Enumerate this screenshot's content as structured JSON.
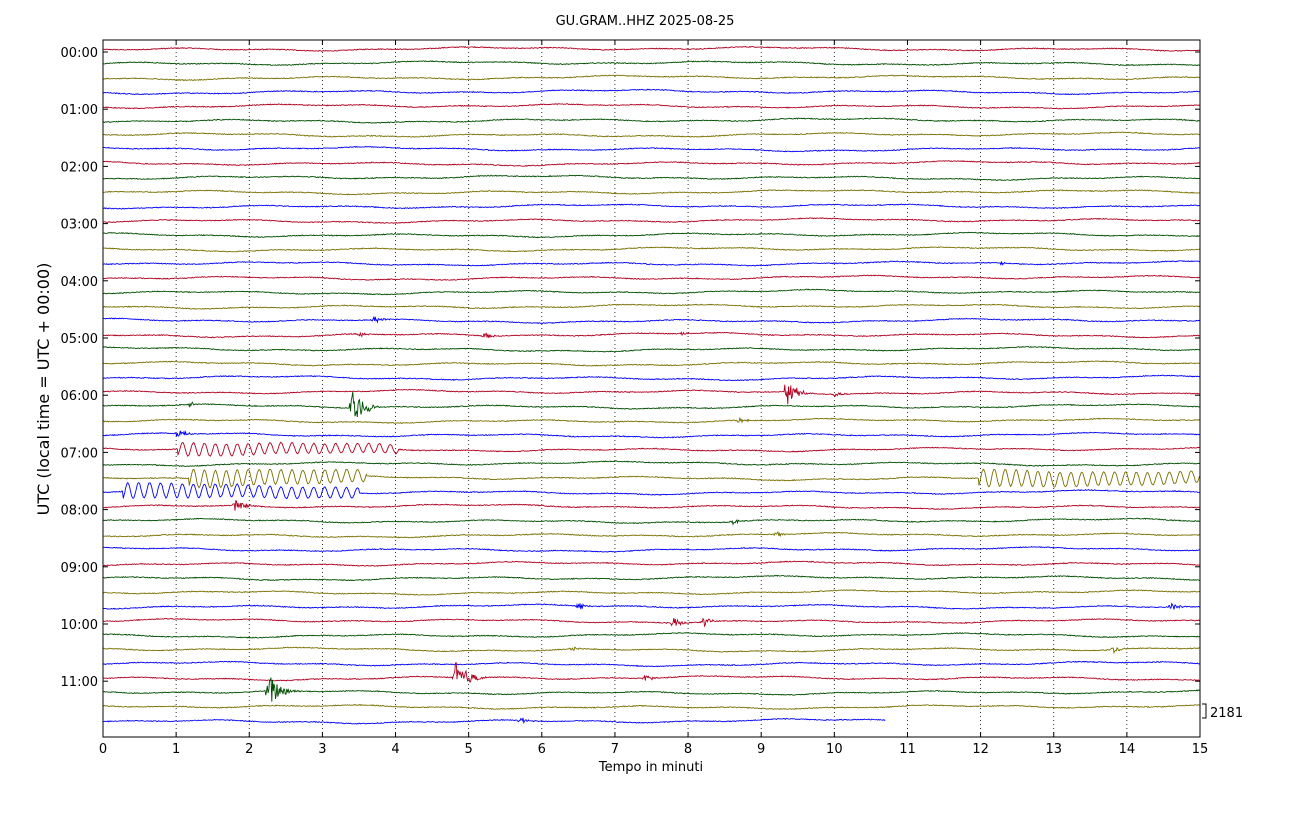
{
  "chart_data": {
    "type": "line",
    "title": "GU.GRAM..HHZ 2025-08-25",
    "xlabel": "Tempo in minuti",
    "ylabel": "UTC (local time = UTC + 00:00)",
    "xlim": [
      0,
      15
    ],
    "x_ticks": [
      "0",
      "1",
      "2",
      "3",
      "4",
      "5",
      "6",
      "7",
      "8",
      "9",
      "10",
      "11",
      "12",
      "13",
      "14",
      "15"
    ],
    "y_tick_labels": [
      "00:00",
      "01:00",
      "02:00",
      "03:00",
      "04:00",
      "05:00",
      "06:00",
      "07:00",
      "08:00",
      "09:00",
      "10:00",
      "11:00"
    ],
    "trace_interval_minutes": 15,
    "trace_count": 48,
    "last_trace_end_minute": 10.7,
    "grid": "vertical dotted",
    "scale_value": "2181",
    "colors": [
      "#b00020",
      "#004d00",
      "#7a7000",
      "#0000ff"
    ],
    "events": [
      {
        "trace": 15,
        "minute": 12.3,
        "amp": 0.5,
        "dur": 0.05
      },
      {
        "trace": 17,
        "minute": 4.3,
        "amp": 0.3,
        "dur": 0.1
      },
      {
        "trace": 19,
        "minute": 3.7,
        "amp": 0.5,
        "dur": 0.25
      },
      {
        "trace": 20,
        "minute": 3.5,
        "amp": 0.4,
        "dur": 0.2
      },
      {
        "trace": 20,
        "minute": 5.2,
        "amp": 0.4,
        "dur": 0.3
      },
      {
        "trace": 20,
        "minute": 7.9,
        "amp": 0.3,
        "dur": 0.2
      },
      {
        "trace": 24,
        "minute": 9.35,
        "amp": 2.2,
        "dur": 0.3
      },
      {
        "trace": 24,
        "minute": 10.0,
        "amp": 0.4,
        "dur": 0.2
      },
      {
        "trace": 25,
        "minute": 1.2,
        "amp": 0.5,
        "dur": 0.1
      },
      {
        "trace": 25,
        "minute": 3.4,
        "amp": 2.2,
        "dur": 0.4
      },
      {
        "trace": 26,
        "minute": 8.7,
        "amp": 0.5,
        "dur": 0.2
      },
      {
        "trace": 27,
        "minute": 1.0,
        "amp": 0.6,
        "dur": 0.3
      },
      {
        "trace": 28,
        "minute": 1.05,
        "amp": 1.5,
        "dur": 3.0
      },
      {
        "trace": 30,
        "minute": 1.2,
        "amp": 2.0,
        "dur": 2.4
      },
      {
        "trace": 30,
        "minute": 12.0,
        "amp": 2.0,
        "dur": 3.0
      },
      {
        "trace": 31,
        "minute": 0.3,
        "amp": 1.8,
        "dur": 3.2
      },
      {
        "trace": 32,
        "minute": 1.8,
        "amp": 0.6,
        "dur": 0.4
      },
      {
        "trace": 33,
        "minute": 8.6,
        "amp": 0.4,
        "dur": 0.2
      },
      {
        "trace": 34,
        "minute": 9.2,
        "amp": 0.4,
        "dur": 0.2
      },
      {
        "trace": 39,
        "minute": 6.5,
        "amp": 0.6,
        "dur": 0.2
      },
      {
        "trace": 39,
        "minute": 14.6,
        "amp": 0.6,
        "dur": 0.2
      },
      {
        "trace": 40,
        "minute": 7.8,
        "amp": 0.6,
        "dur": 0.3
      },
      {
        "trace": 40,
        "minute": 8.2,
        "amp": 0.6,
        "dur": 0.3
      },
      {
        "trace": 42,
        "minute": 6.4,
        "amp": 0.4,
        "dur": 0.2
      },
      {
        "trace": 42,
        "minute": 13.8,
        "amp": 0.5,
        "dur": 0.3
      },
      {
        "trace": 44,
        "minute": 4.8,
        "amp": 2.2,
        "dur": 0.45
      },
      {
        "trace": 44,
        "minute": 7.4,
        "amp": 0.4,
        "dur": 0.3
      },
      {
        "trace": 45,
        "minute": 2.25,
        "amp": 2.2,
        "dur": 0.45
      },
      {
        "trace": 47,
        "minute": 5.7,
        "amp": 0.5,
        "dur": 0.3
      }
    ]
  }
}
